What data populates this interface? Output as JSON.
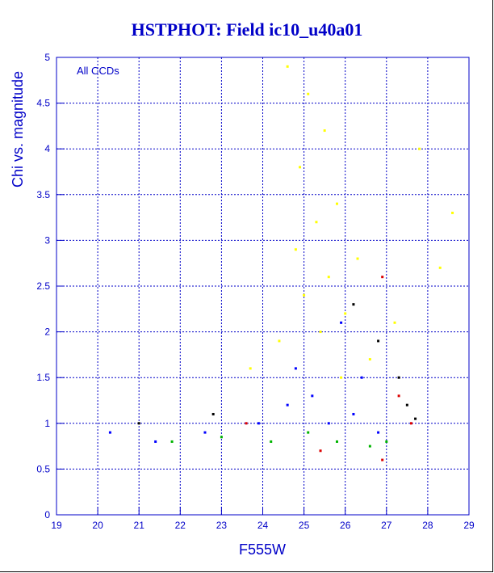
{
  "chart_data": {
    "type": "scatter",
    "title": "HSTPHOT: Field ic10_u40a01",
    "xlabel": "F555W",
    "ylabel": "Chi vs. magnitude",
    "annotation": "All CCDs",
    "xlim": [
      19,
      29
    ],
    "ylim": [
      0,
      5
    ],
    "x_ticks": [
      "19",
      "20",
      "21",
      "22",
      "23",
      "24",
      "25",
      "26",
      "27",
      "28",
      "29"
    ],
    "y_ticks": [
      "0",
      "0.5",
      "1",
      "1.5",
      "2",
      "2.5",
      "3",
      "3.5",
      "4",
      "4.5",
      "5"
    ],
    "grid": true,
    "series": [
      {
        "color": "#ffff00",
        "points": [
          [
            24.9,
            3.8
          ],
          [
            25.1,
            4.6
          ],
          [
            25.3,
            3.2
          ],
          [
            25.6,
            2.6
          ],
          [
            25.8,
            3.4
          ],
          [
            26.0,
            2.2
          ],
          [
            25.4,
            2.0
          ],
          [
            24.8,
            2.9
          ],
          [
            25.0,
            2.4
          ],
          [
            26.3,
            2.8
          ],
          [
            27.2,
            2.1
          ],
          [
            28.3,
            2.7
          ],
          [
            24.4,
            1.9
          ],
          [
            23.7,
            1.6
          ],
          [
            25.5,
            4.2
          ],
          [
            24.6,
            4.9
          ],
          [
            26.6,
            1.7
          ],
          [
            25.9,
            1.5
          ],
          [
            28.6,
            3.3
          ],
          [
            27.8,
            4.0
          ]
        ]
      },
      {
        "color": "#0000ff",
        "points": [
          [
            25.6,
            1.0
          ],
          [
            26.2,
            1.1
          ],
          [
            26.8,
            0.9
          ],
          [
            25.2,
            1.3
          ],
          [
            24.6,
            1.2
          ],
          [
            23.9,
            1.0
          ],
          [
            22.6,
            0.9
          ],
          [
            21.4,
            0.8
          ],
          [
            20.3,
            0.9
          ],
          [
            26.4,
            1.5
          ],
          [
            25.9,
            2.1
          ],
          [
            24.8,
            1.6
          ]
        ]
      },
      {
        "color": "#00b400",
        "points": [
          [
            25.8,
            0.8
          ],
          [
            26.6,
            0.75
          ],
          [
            25.1,
            0.9
          ],
          [
            24.2,
            0.8
          ],
          [
            23.0,
            0.85
          ],
          [
            21.8,
            0.8
          ],
          [
            27.0,
            0.8
          ]
        ]
      },
      {
        "color": "#dc0000",
        "points": [
          [
            27.3,
            1.3
          ],
          [
            27.6,
            1.0
          ],
          [
            26.9,
            0.6
          ],
          [
            25.4,
            0.7
          ],
          [
            23.6,
            1.0
          ],
          [
            26.9,
            2.6
          ]
        ]
      },
      {
        "color": "#000000",
        "points": [
          [
            27.5,
            1.2
          ],
          [
            27.7,
            1.05
          ],
          [
            27.3,
            1.5
          ],
          [
            26.8,
            1.9
          ],
          [
            22.8,
            1.1
          ],
          [
            21.0,
            1.0
          ],
          [
            26.2,
            2.3
          ]
        ]
      }
    ]
  }
}
